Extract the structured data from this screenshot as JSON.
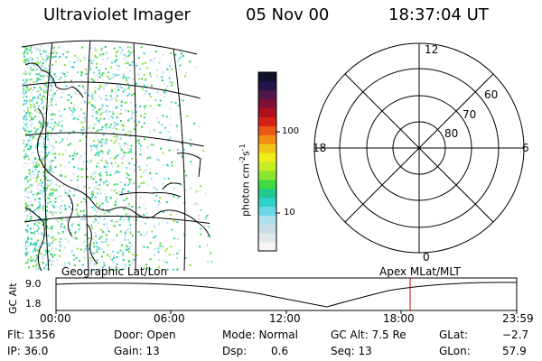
{
  "header": {
    "instrument": "Ultraviolet Imager",
    "date": "05 Nov 00",
    "time": "18:37:04 UT"
  },
  "colorbar": {
    "unit_label": "photon cm",
    "unit_sup1": "-2",
    "unit_mid": "s",
    "unit_sup2": "-1",
    "tick_high": "100",
    "tick_low": "10",
    "colors": [
      "#f5f5f5",
      "#e0e8ec",
      "#c8dde6",
      "#aee1ec",
      "#6dd6e6",
      "#2fd0c7",
      "#21c98f",
      "#3fdb40",
      "#8de42c",
      "#c8ec22",
      "#f0ee1c",
      "#f3c418",
      "#f38d14",
      "#e85816",
      "#d8201a",
      "#b0101e",
      "#801034",
      "#501848",
      "#26124c",
      "#10102a"
    ]
  },
  "polar": {
    "mlt_labels": {
      "top": "12",
      "left": "18",
      "right": "6",
      "bottom": "0"
    },
    "lat_labels": [
      "60",
      "70",
      "80"
    ]
  },
  "map": {
    "left_label": "Geographic Lat/Lon",
    "right_label": "Apex MLat/MLT"
  },
  "altitude_plot": {
    "axis_label": "GC Alt",
    "ytick_high": "9.0",
    "ytick_low": "1.8",
    "xticks": [
      "00:00",
      "06:00",
      "12:00",
      "18:00",
      "23:59"
    ]
  },
  "info": {
    "flt": "Flt: 1356",
    "ip": "IP: 36.0",
    "door": "Door: Open",
    "gain": "Gain: 13",
    "mode": "Mode: Normal",
    "dsp_label": "Dsp:",
    "dsp_value": "0.6",
    "gcalt": "GC Alt: 7.5 Re",
    "seq": "Seq: 13",
    "glat_label": "GLat:",
    "glat_value": "−2.7",
    "glon_label": "GLon:",
    "glon_value": "57.9"
  }
}
